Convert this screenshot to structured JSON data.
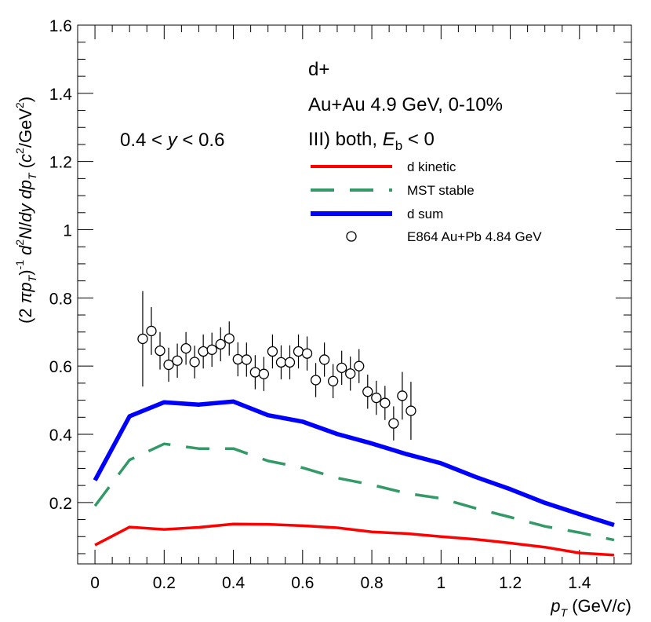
{
  "chart_data": {
    "type": "line",
    "x_axis": {
      "label_main": "p",
      "label_sub": "T",
      "label_unit_open": " (GeV/",
      "label_unit_c": "c",
      "label_unit_close": ")",
      "range": [
        -0.05,
        1.55
      ],
      "ticks": [
        0,
        0.2,
        0.4,
        0.6,
        0.8,
        1,
        1.2,
        1.4
      ],
      "tick_labels": [
        "0",
        "0.2",
        "0.4",
        "0.6",
        "0.8",
        "1",
        "1.2",
        "1.4"
      ]
    },
    "y_axis": {
      "label_parts": {
        "open": "(2 ",
        "pi": "π",
        "p": "p",
        "p_sub": "T",
        "close_paren": ")",
        "exp": "-1",
        "d": " d",
        "d_sup": "2",
        "N": "N",
        "slash": "/",
        "dy": "dy",
        "dp": " dp",
        "dp_sub": "T",
        "unit_open": " (",
        "unit_c": "c",
        "unit_c_sup": "2",
        "unit_mid": "/GeV",
        "unit_gev_sup": "2",
        "unit_close": ")"
      },
      "range": [
        0.02,
        1.6
      ],
      "ticks": [
        0.2,
        0.4,
        0.6,
        0.8,
        1,
        1.2,
        1.4,
        1.6
      ],
      "tick_labels": [
        "0.2",
        "0.4",
        "0.6",
        "0.8",
        "1",
        "1.2",
        "1.4",
        "1.6"
      ]
    },
    "annotations": {
      "rapidity": {
        "pre": "0.4 < ",
        "var": "y",
        "post": " < 0.6"
      },
      "particle": "d+",
      "system": "Au+Au 4.9 GeV, 0-10%",
      "scenario": {
        "pre": "III) both, ",
        "var": "E",
        "sub": "b",
        "post": " < 0"
      }
    },
    "series": [
      {
        "name": "d kinetic",
        "style": "line",
        "color": "#ff0000",
        "x": [
          0,
          0.1,
          0.2,
          0.3,
          0.4,
          0.5,
          0.6,
          0.7,
          0.8,
          0.9,
          1.0,
          1.1,
          1.2,
          1.3,
          1.4,
          1.5
        ],
        "y": [
          0.075,
          0.128,
          0.121,
          0.127,
          0.137,
          0.136,
          0.132,
          0.126,
          0.114,
          0.109,
          0.1,
          0.092,
          0.081,
          0.069,
          0.052,
          0.046
        ]
      },
      {
        "name": "MST stable",
        "style": "dashed",
        "color": "#339966",
        "x": [
          0,
          0.1,
          0.2,
          0.3,
          0.4,
          0.5,
          0.6,
          0.7,
          0.8,
          0.9,
          1.0,
          1.1,
          1.2,
          1.3,
          1.4,
          1.5
        ],
        "y": [
          0.19,
          0.325,
          0.372,
          0.358,
          0.358,
          0.322,
          0.302,
          0.272,
          0.252,
          0.227,
          0.212,
          0.183,
          0.157,
          0.13,
          0.112,
          0.09
        ]
      },
      {
        "name": "d sum",
        "style": "line",
        "color": "#0000ff",
        "x": [
          0,
          0.1,
          0.2,
          0.3,
          0.4,
          0.5,
          0.6,
          0.7,
          0.8,
          0.9,
          1.0,
          1.1,
          1.2,
          1.3,
          1.4,
          1.5
        ],
        "y": [
          0.265,
          0.453,
          0.494,
          0.487,
          0.496,
          0.456,
          0.437,
          0.401,
          0.373,
          0.342,
          0.315,
          0.275,
          0.239,
          0.199,
          0.166,
          0.134
        ]
      },
      {
        "name": "E864 Au+Pb 4.84 GeV",
        "style": "markers",
        "color": "#000000",
        "x": [
          0.138,
          0.163,
          0.188,
          0.213,
          0.238,
          0.263,
          0.288,
          0.313,
          0.338,
          0.363,
          0.388,
          0.413,
          0.438,
          0.463,
          0.488,
          0.513,
          0.538,
          0.563,
          0.588,
          0.613,
          0.638,
          0.663,
          0.688,
          0.713,
          0.738,
          0.763,
          0.788,
          0.813,
          0.838,
          0.863,
          0.888,
          0.913
        ],
        "y": [
          0.68,
          0.703,
          0.645,
          0.604,
          0.616,
          0.652,
          0.612,
          0.643,
          0.648,
          0.664,
          0.681,
          0.62,
          0.619,
          0.582,
          0.577,
          0.643,
          0.611,
          0.611,
          0.643,
          0.637,
          0.559,
          0.619,
          0.556,
          0.595,
          0.578,
          0.6,
          0.525,
          0.507,
          0.492,
          0.432,
          0.513,
          0.469
        ],
        "err": [
          0.14,
          0.07,
          0.055,
          0.05,
          0.05,
          0.048,
          0.048,
          0.05,
          0.05,
          0.05,
          0.05,
          0.05,
          0.05,
          0.05,
          0.05,
          0.05,
          0.05,
          0.05,
          0.05,
          0.05,
          0.05,
          0.05,
          0.05,
          0.05,
          0.05,
          0.05,
          0.05,
          0.05,
          0.05,
          0.05,
          0.07,
          0.085
        ]
      }
    ],
    "legend": {
      "position": "upper-right",
      "entries": [
        "d kinetic",
        "MST stable",
        "d sum",
        "E864 Au+Pb 4.84 GeV"
      ]
    }
  }
}
